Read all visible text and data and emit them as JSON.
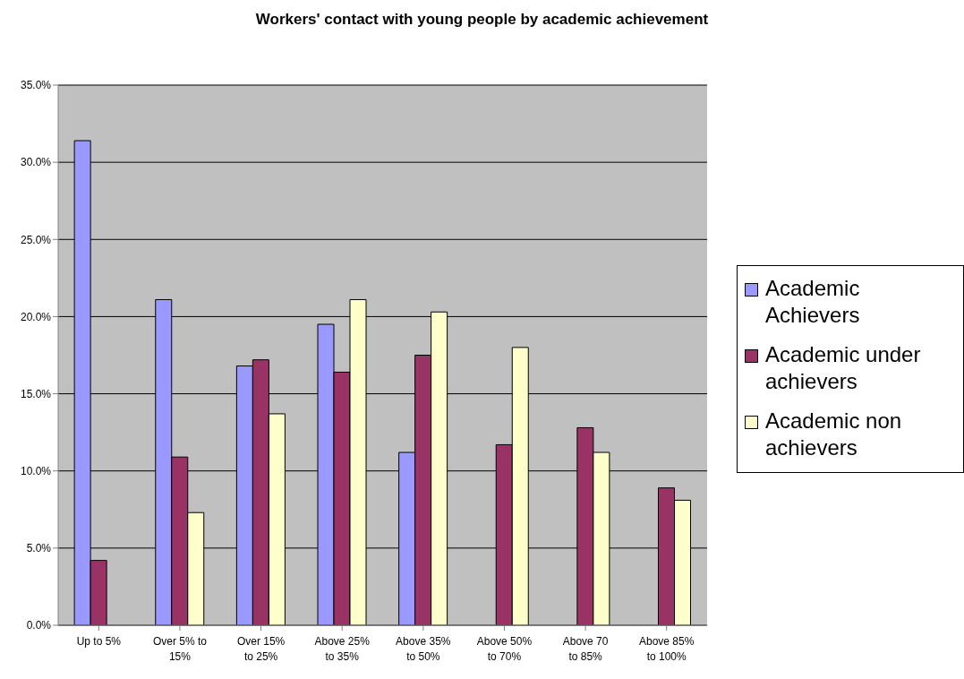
{
  "chart_data": {
    "type": "bar",
    "title": "Workers' contact with young people by academic achievement",
    "categories": [
      "Up to 5%",
      "Over 5% to 15%",
      "Over 15% to 25%",
      "Above 25% to 35%",
      "Above 35% to 50%",
      "Above 50% to 70%",
      "Above 70 to 85%",
      "Above 85% to 100%"
    ],
    "series": [
      {
        "name": "Academic Achievers",
        "color": "#9999ff",
        "values": [
          31.4,
          21.1,
          16.8,
          19.5,
          11.2,
          0,
          0,
          0
        ]
      },
      {
        "name": "Academic under achievers",
        "color": "#993366",
        "values": [
          4.2,
          10.9,
          17.2,
          16.4,
          17.5,
          11.7,
          12.8,
          8.9
        ]
      },
      {
        "name": "Academic non achievers",
        "color": "#ffffcc",
        "values": [
          0,
          7.3,
          13.7,
          21.1,
          20.3,
          18.0,
          11.2,
          8.1
        ]
      }
    ],
    "ylim": [
      0,
      35
    ],
    "yticks": [
      {
        "value": 0,
        "label": "0.0%"
      },
      {
        "value": 5,
        "label": "5.0%"
      },
      {
        "value": 10,
        "label": "10.0%"
      },
      {
        "value": 15,
        "label": "15.0%"
      },
      {
        "value": 20,
        "label": "20.0%"
      },
      {
        "value": 25,
        "label": "25.0%"
      },
      {
        "value": 30,
        "label": "30.0%"
      },
      {
        "value": 35,
        "label": "35.0%"
      }
    ],
    "grid": "y",
    "legend": "right"
  }
}
